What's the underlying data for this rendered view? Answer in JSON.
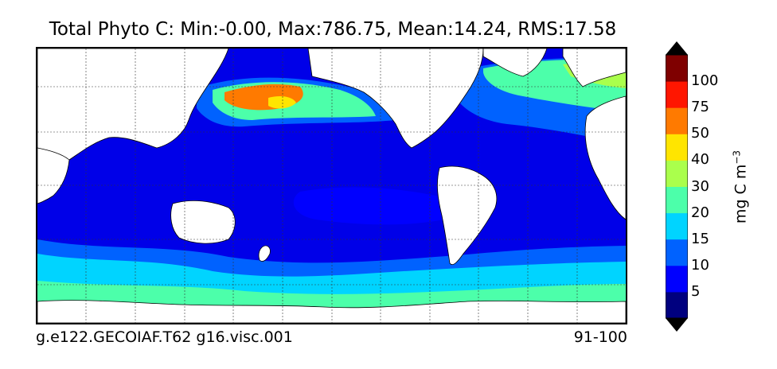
{
  "title": "Total Phyto C: Min:-0.00, Max:786.75, Mean:14.24, RMS:17.58",
  "footer": {
    "case": "g.e122.GECOIAF.T62 g16.visc.001",
    "years": "91-100"
  },
  "colorbar": {
    "units_main": "mg C m",
    "units_exp": "−3",
    "ticks": [
      "5",
      "10",
      "15",
      "20",
      "30",
      "40",
      "50",
      "75",
      "100"
    ],
    "colors": [
      "#00007f",
      "#0000ff",
      "#0062ff",
      "#00d4ff",
      "#4cffaa",
      "#aaff4c",
      "#ffe500",
      "#ff7a00",
      "#ff1600",
      "#7f0000"
    ],
    "under_color": "#000000",
    "over_color": "#000000"
  },
  "map": {
    "ocean_base_color": "#0000e8",
    "land_color": "#ffffff",
    "projection": "cylindrical",
    "gridlines": true
  }
}
